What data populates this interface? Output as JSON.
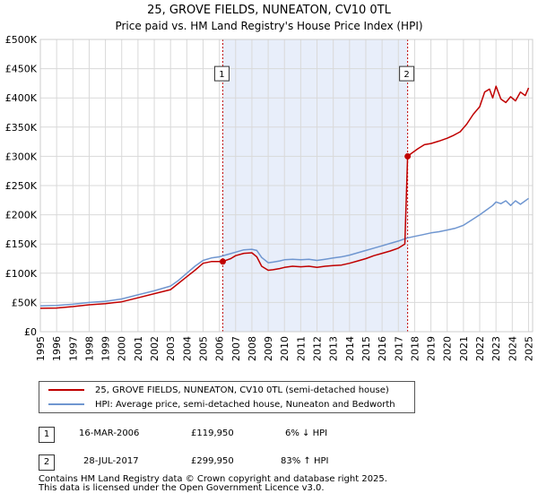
{
  "chart_data": {
    "type": "line",
    "title": "25, GROVE FIELDS, NUNEATON, CV10 0TL",
    "subtitle": "Price paid vs. HM Land Registry's House Price Index (HPI)",
    "xlabel": "",
    "ylabel": "",
    "xlim": [
      1995,
      2025.25
    ],
    "ylim": [
      0,
      500000
    ],
    "grid": true,
    "y_ticks": [
      {
        "value": 0,
        "label": "£0"
      },
      {
        "value": 50000,
        "label": "£50K"
      },
      {
        "value": 100000,
        "label": "£100K"
      },
      {
        "value": 150000,
        "label": "£150K"
      },
      {
        "value": 200000,
        "label": "£200K"
      },
      {
        "value": 250000,
        "label": "£250K"
      },
      {
        "value": 300000,
        "label": "£300K"
      },
      {
        "value": 350000,
        "label": "£350K"
      },
      {
        "value": 400000,
        "label": "£400K"
      },
      {
        "value": 450000,
        "label": "£450K"
      },
      {
        "value": 500000,
        "label": "£500K"
      }
    ],
    "x_ticks": [
      "1995",
      "1996",
      "1997",
      "1998",
      "1999",
      "2000",
      "2001",
      "2002",
      "2003",
      "2004",
      "2005",
      "2006",
      "2007",
      "2008",
      "2009",
      "2010",
      "2011",
      "2012",
      "2013",
      "2014",
      "2015",
      "2016",
      "2017",
      "2018",
      "2019",
      "2020",
      "2021",
      "2022",
      "2023",
      "2024",
      "2025"
    ],
    "shaded_period": {
      "from": 2006.21,
      "to": 2017.57
    },
    "series": [
      {
        "name": "25, GROVE FIELDS, NUNEATON, CV10 0TL (semi-detached house)",
        "color": "#c00000",
        "x": [
          1995.0,
          1996.0,
          1997.0,
          1998.0,
          1999.0,
          2000.0,
          2001.0,
          2002.0,
          2003.0,
          2003.5,
          2004.0,
          2004.5,
          2005.0,
          2005.5,
          2006.21,
          2006.7,
          2007.0,
          2007.5,
          2008.0,
          2008.3,
          2008.6,
          2009.0,
          2009.3,
          2009.7,
          2010.0,
          2010.5,
          2011.0,
          2011.5,
          2012.0,
          2012.5,
          2013.0,
          2013.5,
          2014.0,
          2014.5,
          2015.0,
          2015.5,
          2016.0,
          2016.5,
          2017.0,
          2017.4,
          2017.57,
          2017.8,
          2018.2,
          2018.6,
          2019.0,
          2019.5,
          2020.0,
          2020.4,
          2020.8,
          2021.2,
          2021.6,
          2022.0,
          2022.3,
          2022.6,
          2022.8,
          2023.0,
          2023.3,
          2023.6,
          2023.9,
          2024.2,
          2024.5,
          2024.8,
          2025.0
        ],
        "y": [
          40000,
          40500,
          43000,
          46000,
          48000,
          51000,
          58000,
          65000,
          72000,
          83000,
          94000,
          105000,
          117000,
          120000,
          119950,
          125000,
          130000,
          134000,
          135000,
          128000,
          112000,
          105000,
          106000,
          108000,
          110000,
          112000,
          111000,
          112000,
          110000,
          112000,
          113000,
          114000,
          117000,
          121000,
          125000,
          130000,
          134000,
          138000,
          143000,
          150000,
          299950,
          305000,
          313000,
          320000,
          322000,
          326000,
          331000,
          336000,
          342000,
          355000,
          372000,
          385000,
          410000,
          415000,
          400000,
          420000,
          398000,
          392000,
          402000,
          395000,
          410000,
          404000,
          417000
        ]
      },
      {
        "name": "HPI: Average price, semi-detached house, Nuneaton and Bedworth",
        "color": "#6f96d0",
        "x": [
          1995.0,
          1996.0,
          1997.0,
          1998.0,
          1999.0,
          2000.0,
          2001.0,
          2002.0,
          2003.0,
          2003.5,
          2004.0,
          2004.5,
          2005.0,
          2005.5,
          2006.0,
          2006.5,
          2007.0,
          2007.5,
          2008.0,
          2008.3,
          2008.6,
          2009.0,
          2009.3,
          2009.7,
          2010.0,
          2010.5,
          2011.0,
          2011.5,
          2012.0,
          2012.5,
          2013.0,
          2013.5,
          2014.0,
          2014.5,
          2015.0,
          2015.5,
          2016.0,
          2016.5,
          2017.0,
          2017.5,
          2018.0,
          2018.5,
          2019.0,
          2019.5,
          2020.0,
          2020.5,
          2021.0,
          2021.5,
          2022.0,
          2022.4,
          2022.8,
          2023.0,
          2023.3,
          2023.6,
          2023.9,
          2024.2,
          2024.5,
          2024.8,
          2025.0
        ],
        "y": [
          44000,
          45000,
          47000,
          50000,
          52000,
          56000,
          63000,
          70000,
          78000,
          88000,
          100000,
          112000,
          122000,
          126000,
          128000,
          132000,
          136000,
          140000,
          141000,
          139000,
          127000,
          118000,
          119000,
          121000,
          123000,
          124000,
          123000,
          124000,
          122000,
          124000,
          126000,
          128000,
          131000,
          135000,
          139000,
          143000,
          147000,
          151000,
          155000,
          160000,
          163000,
          166000,
          169000,
          171000,
          174000,
          177000,
          182000,
          191000,
          200000,
          208000,
          216000,
          222000,
          219000,
          224000,
          216000,
          224000,
          218000,
          224000,
          228000
        ]
      }
    ],
    "transactions": [
      {
        "marker": "1",
        "x": 2006.21,
        "price": 119950
      },
      {
        "marker": "2",
        "x": 2017.57,
        "price": 299950
      }
    ],
    "marker_label_y": 440000
  },
  "legend": {
    "items": [
      {
        "label": "25, GROVE FIELDS, NUNEATON, CV10 0TL (semi-detached house)",
        "color": "#c00000"
      },
      {
        "label": "HPI: Average price, semi-detached house, Nuneaton and Bedworth",
        "color": "#6f96d0"
      }
    ]
  },
  "table": {
    "rows": [
      {
        "marker": "1",
        "date": "16-MAR-2006",
        "price": "£119,950",
        "hpi": "6% ↓ HPI"
      },
      {
        "marker": "2",
        "date": "28-JUL-2017",
        "price": "£299,950",
        "hpi": "83% ↑ HPI"
      }
    ]
  },
  "footer": {
    "line1": "Contains HM Land Registry data © Crown copyright and database right 2025.",
    "line2": "This data is licensed under the Open Government Licence v3.0."
  }
}
